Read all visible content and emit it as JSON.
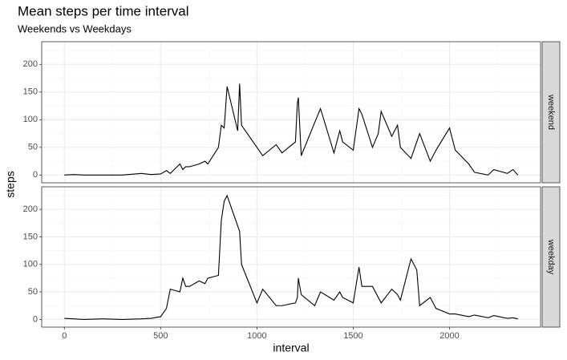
{
  "chart_data": {
    "type": "line",
    "title": "Mean steps per time interval",
    "subtitle": "Weekends vs Weekdays",
    "x_label": "interval",
    "y_label": "steps",
    "facet": true,
    "grid": true,
    "color": "#000000",
    "xlim": [
      -117.75,
      2472.75
    ],
    "xticks": [
      0,
      500,
      1000,
      1500,
      2000
    ],
    "xminor": [
      250,
      750,
      1250,
      1750,
      2250
    ],
    "ylim": [
      -14,
      241
    ],
    "yticks": [
      0,
      50,
      100,
      150,
      200
    ],
    "yminor": [
      25,
      75,
      125,
      175,
      225
    ],
    "x": [
      0,
      50,
      100,
      200,
      300,
      400,
      450,
      500,
      530,
      550,
      600,
      615,
      630,
      650,
      700,
      730,
      745,
      800,
      815,
      830,
      845,
      900,
      910,
      920,
      1000,
      1030,
      1100,
      1130,
      1200,
      1210,
      1215,
      1230,
      1300,
      1330,
      1400,
      1430,
      1445,
      1500,
      1530,
      1545,
      1600,
      1630,
      1645,
      1700,
      1730,
      1745,
      1800,
      1830,
      1845,
      1900,
      1930,
      2000,
      2030,
      2100,
      2130,
      2200,
      2230,
      2300,
      2330,
      2355
    ],
    "series": [
      {
        "name": "weekend",
        "values": [
          0,
          1,
          0,
          0,
          0,
          3,
          1,
          2,
          8,
          3,
          20,
          10,
          15,
          15,
          20,
          25,
          20,
          50,
          90,
          85,
          160,
          80,
          165,
          90,
          50,
          35,
          55,
          40,
          60,
          130,
          140,
          35,
          95,
          120,
          40,
          80,
          60,
          45,
          120,
          110,
          50,
          75,
          115,
          70,
          90,
          50,
          30,
          60,
          75,
          25,
          45,
          85,
          45,
          20,
          5,
          0,
          10,
          3,
          10,
          0
        ]
      },
      {
        "name": "weekday",
        "values": [
          2,
          1,
          0,
          1,
          0,
          1,
          2,
          5,
          20,
          55,
          50,
          75,
          60,
          60,
          70,
          65,
          75,
          80,
          180,
          215,
          225,
          170,
          160,
          100,
          30,
          55,
          25,
          25,
          30,
          40,
          75,
          45,
          25,
          50,
          35,
          50,
          40,
          30,
          95,
          60,
          60,
          40,
          30,
          55,
          45,
          35,
          110,
          90,
          25,
          40,
          20,
          10,
          10,
          5,
          8,
          3,
          7,
          2,
          3,
          1
        ]
      }
    ]
  }
}
